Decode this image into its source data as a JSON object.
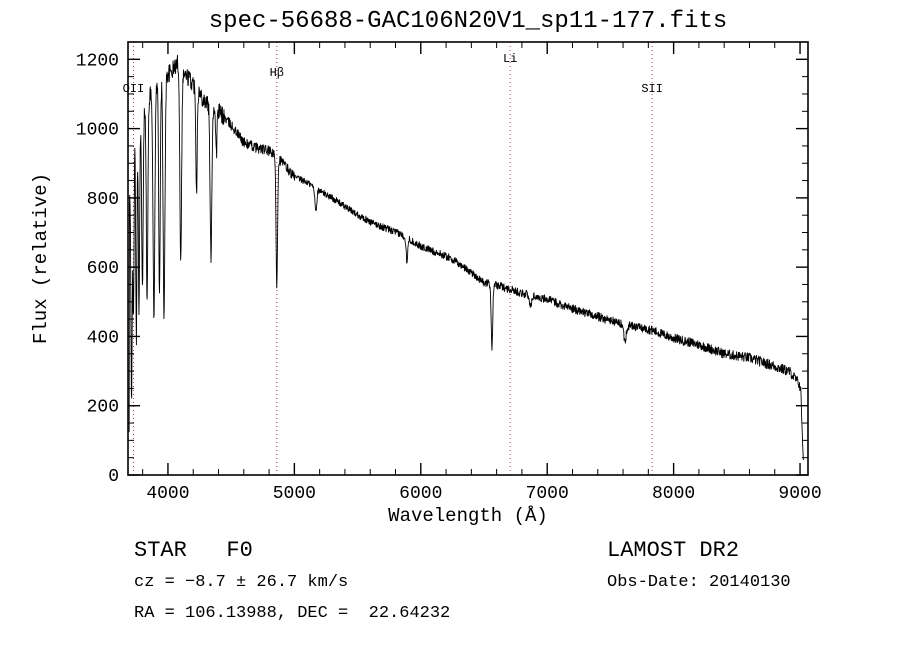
{
  "title": "spec-56688-GAC106N20V1_sp11-177.fits",
  "chart_data": {
    "type": "line",
    "title": "spec-56688-GAC106N20V1_sp11-177.fits",
    "xlabel": "Wavelength (Å)",
    "ylabel": "Flux (relative)",
    "xlim": [
      3684,
      9063
    ],
    "ylim": [
      0,
      1250
    ],
    "x_ticks": [
      4000,
      5000,
      6000,
      7000,
      8000,
      9000
    ],
    "y_ticks": [
      0,
      200,
      400,
      600,
      800,
      1000,
      1200
    ],
    "grid": false,
    "line_color": "#000000",
    "marker_color": "#9e4238",
    "markers": [
      {
        "label": "OII",
        "wavelength": 3727,
        "label_y": 92
      },
      {
        "label": "Hβ",
        "wavelength": 4861,
        "label_y": 76
      },
      {
        "label": "Li",
        "wavelength": 6707,
        "label_y": 62
      },
      {
        "label": "SII",
        "wavelength": 7830,
        "label_y": 92
      }
    ],
    "continuum": [
      [
        3693,
        120
      ],
      [
        3695,
        780
      ],
      [
        3730,
        1000
      ],
      [
        3780,
        1040
      ],
      [
        3850,
        1090
      ],
      [
        3920,
        1130
      ],
      [
        3980,
        1150
      ],
      [
        4040,
        1170
      ],
      [
        4085,
        1195
      ],
      [
        4120,
        1160
      ],
      [
        4180,
        1140
      ],
      [
        4250,
        1100
      ],
      [
        4320,
        1070
      ],
      [
        4400,
        1050
      ],
      [
        4500,
        1010
      ],
      [
        4600,
        960
      ],
      [
        4700,
        945
      ],
      [
        4800,
        935
      ],
      [
        4900,
        905
      ],
      [
        5000,
        860
      ],
      [
        5100,
        845
      ],
      [
        5200,
        820
      ],
      [
        5300,
        800
      ],
      [
        5440,
        765
      ],
      [
        5600,
        730
      ],
      [
        5840,
        695
      ],
      [
        6000,
        660
      ],
      [
        6230,
        627
      ],
      [
        6400,
        585
      ],
      [
        6500,
        555
      ],
      [
        6630,
        545
      ],
      [
        6800,
        525
      ],
      [
        7020,
        505
      ],
      [
        7200,
        480
      ],
      [
        7420,
        455
      ],
      [
        7600,
        435
      ],
      [
        7810,
        420
      ],
      [
        8000,
        395
      ],
      [
        8210,
        375
      ],
      [
        8400,
        350
      ],
      [
        8600,
        338
      ],
      [
        8750,
        320
      ],
      [
        8920,
        298
      ],
      [
        8990,
        265
      ],
      [
        9005,
        250
      ],
      [
        9018,
        120
      ],
      [
        9030,
        15
      ]
    ],
    "absorption_lines": [
      [
        3712,
        650,
        5
      ],
      [
        3727,
        520,
        5
      ],
      [
        3750,
        620,
        5
      ],
      [
        3771,
        560,
        5
      ],
      [
        3798,
        520,
        6
      ],
      [
        3835,
        580,
        6
      ],
      [
        3889,
        660,
        7
      ],
      [
        3933,
        600,
        6
      ],
      [
        3969,
        700,
        7
      ],
      [
        4101,
        545,
        7
      ],
      [
        4226,
        300,
        5
      ],
      [
        4340,
        430,
        7
      ],
      [
        4383,
        130,
        5
      ],
      [
        4861,
        365,
        6
      ],
      [
        5170,
        60,
        8
      ],
      [
        5890,
        65,
        6
      ],
      [
        6563,
        180,
        6
      ],
      [
        6867,
        35,
        8
      ],
      [
        7615,
        45,
        10
      ]
    ],
    "noise_seed": 42
  },
  "footer": {
    "class_line": "STAR   F0",
    "survey": "LAMOST DR2",
    "cz_line": "cz = −8.7 ± 26.7 km/s",
    "obs_date": "Obs-Date: 20140130",
    "coords_line": "RA = 106.13988, DEC =  22.64232"
  }
}
